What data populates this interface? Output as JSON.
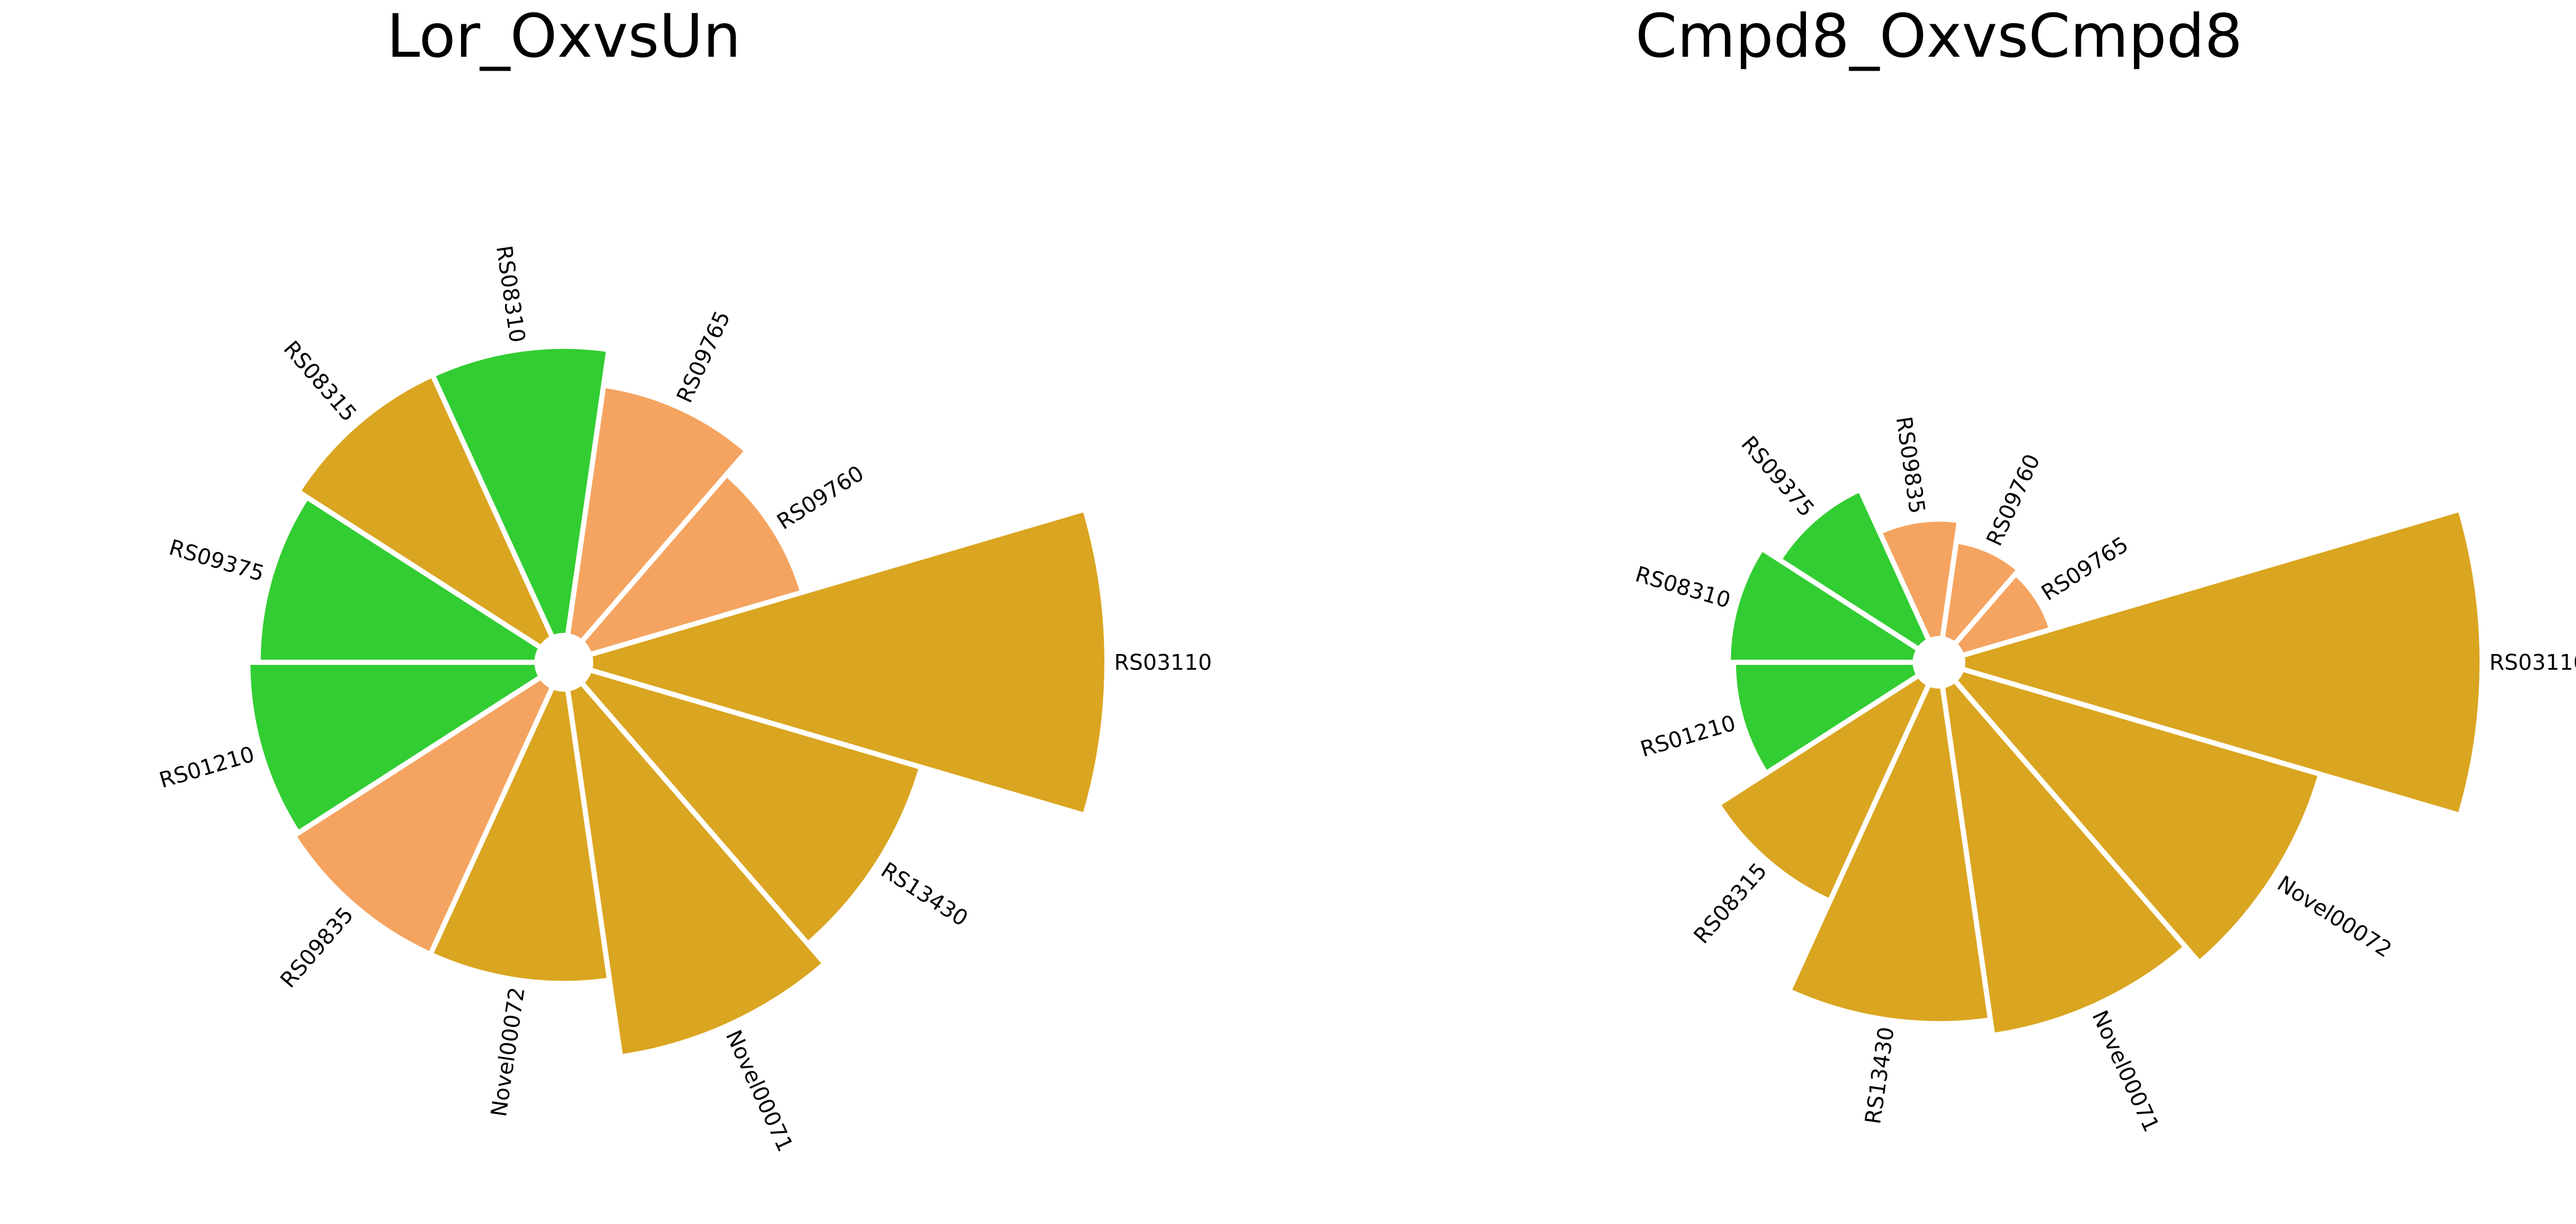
{
  "colors": {
    "goldenrod": "#DAA520",
    "green": "#32CD32",
    "sandybrown": "#F4A460"
  },
  "chart_data": [
    {
      "type": "bar",
      "polar": true,
      "title": "Lor_OxvsUn",
      "grid": false,
      "axis_visible": false,
      "categories": [
        "RS03110",
        "RS13430",
        "Novel00071",
        "Novel00072",
        "RS09835",
        "RS01210",
        "RS09375",
        "RS08315",
        "RS08310",
        "RS09765",
        "RS09760"
      ],
      "values": [
        1.0,
        0.67,
        0.72,
        0.57,
        0.57,
        0.56,
        0.54,
        0.56,
        0.56,
        0.49,
        0.43
      ],
      "colors": [
        "goldenrod",
        "goldenrod",
        "goldenrod",
        "goldenrod",
        "sandybrown",
        "green",
        "green",
        "goldenrod",
        "green",
        "sandybrown",
        "sandybrown"
      ]
    },
    {
      "type": "bar",
      "polar": true,
      "title": "Cmpd8_OxvsCmpd8",
      "grid": false,
      "axis_visible": false,
      "categories": [
        "RS03110",
        "Novel00072",
        "Novel00071",
        "RS13430",
        "RS08315",
        "RS01210",
        "RS08310",
        "RS09375",
        "RS09835",
        "RS09760",
        "RS09765"
      ],
      "values": [
        1.0,
        0.72,
        0.68,
        0.65,
        0.46,
        0.35,
        0.36,
        0.32,
        0.23,
        0.19,
        0.18
      ],
      "colors": [
        "goldenrod",
        "goldenrod",
        "goldenrod",
        "goldenrod",
        "goldenrod",
        "green",
        "green",
        "green",
        "sandybrown",
        "sandybrown",
        "sandybrown"
      ]
    }
  ]
}
